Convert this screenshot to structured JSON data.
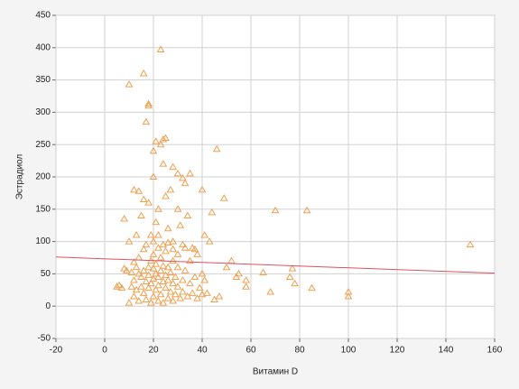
{
  "chart_data": {
    "type": "scatter",
    "x_label": "Витамин D",
    "y_label": "Эстрадиол",
    "xlim": [
      -20,
      160
    ],
    "xticks": [
      -20,
      0,
      20,
      40,
      60,
      80,
      100,
      120,
      140,
      160
    ],
    "ylim": [
      -50,
      450
    ],
    "yticks": [
      -50,
      0,
      50,
      100,
      150,
      200,
      250,
      300,
      350,
      400,
      450
    ],
    "grid": true,
    "series": [
      {
        "color": "#f0a050",
        "x": [
          10,
          12,
          13,
          14,
          15,
          15,
          16,
          16,
          17,
          17,
          18,
          18,
          18,
          19,
          19,
          19,
          20,
          20,
          20,
          20,
          21,
          21,
          21,
          22,
          22,
          22,
          22,
          23,
          23,
          23,
          24,
          24,
          24,
          25,
          25,
          25,
          26,
          26,
          26,
          27,
          27,
          28,
          28,
          28,
          29,
          29,
          30,
          30,
          31,
          32,
          32,
          33,
          34,
          35,
          36,
          37,
          38,
          39,
          40,
          41,
          13,
          14,
          12,
          11,
          9,
          8,
          6,
          5,
          7,
          16,
          17,
          20,
          22,
          24,
          26,
          28,
          30,
          33,
          35,
          37,
          12,
          14,
          11,
          10,
          13,
          15,
          8,
          12,
          14,
          16,
          18,
          20,
          22,
          21,
          19,
          25,
          27,
          26,
          31,
          30,
          34,
          28,
          32,
          36,
          38,
          41,
          43,
          44,
          40,
          49,
          24,
          28,
          30,
          32,
          35,
          33,
          20,
          21,
          23,
          24,
          25,
          17,
          18,
          18,
          10,
          16,
          23,
          46,
          70,
          83,
          150,
          100,
          100,
          85,
          78,
          76,
          77,
          68,
          65,
          58,
          58,
          55,
          52,
          50,
          45,
          42,
          40,
          47,
          54
        ],
        "y": [
          5,
          15,
          25,
          8,
          30,
          45,
          55,
          20,
          10,
          38,
          60,
          28,
          48,
          5,
          35,
          70,
          15,
          42,
          58,
          80,
          25,
          50,
          65,
          8,
          32,
          45,
          90,
          18,
          55,
          75,
          5,
          38,
          62,
          28,
          48,
          85,
          12,
          40,
          60,
          22,
          52,
          8,
          35,
          70,
          18,
          45,
          30,
          60,
          12,
          40,
          22,
          55,
          15,
          35,
          20,
          45,
          12,
          28,
          18,
          40,
          60,
          75,
          40,
          30,
          55,
          58,
          32,
          30,
          28,
          88,
          95,
          100,
          110,
          95,
          98,
          88,
          80,
          90,
          70,
          88,
          68,
          50,
          52,
          100,
          110,
          140,
          135,
          180,
          178,
          165,
          160,
          200,
          150,
          130,
          110,
          170,
          180,
          120,
          125,
          150,
          140,
          100,
          95,
          90,
          80,
          110,
          100,
          145,
          180,
          167,
          220,
          215,
          205,
          198,
          205,
          190,
          240,
          255,
          250,
          258,
          260,
          285,
          313,
          310,
          343,
          360,
          397,
          243,
          148,
          148,
          95,
          22,
          15,
          28,
          35,
          45,
          58,
          22,
          52,
          40,
          30,
          50,
          70,
          60,
          10,
          20,
          50,
          15,
          45
        ]
      }
    ],
    "trend_line": {
      "color": "#e05060",
      "x": [
        -20,
        160
      ],
      "y": [
        76,
        51
      ]
    }
  }
}
